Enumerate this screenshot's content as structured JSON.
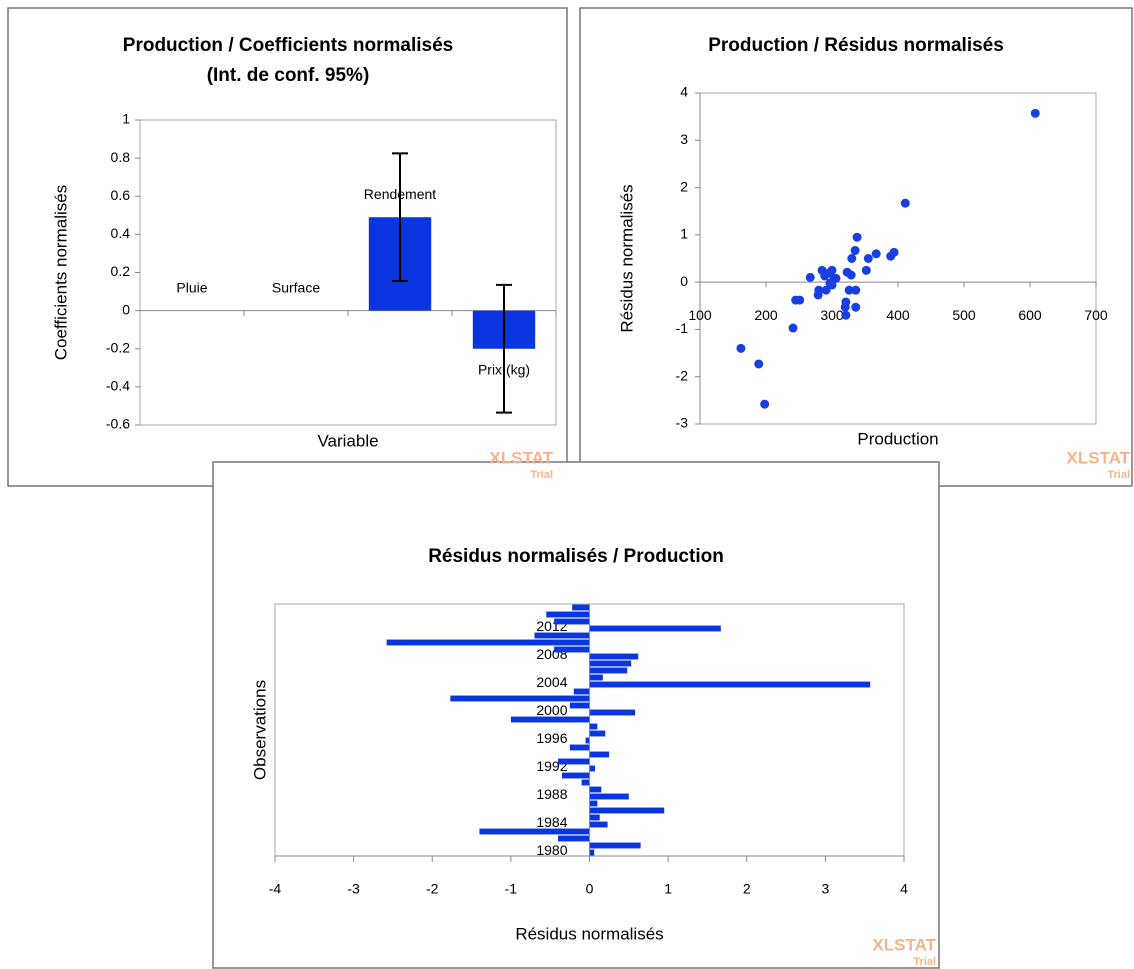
{
  "chart_data": [
    {
      "type": "bar",
      "title": "Production / Coefficients normalisés",
      "subtitle": "(Int. de conf. 95%)",
      "x_label": "Variable",
      "y_label": "Coefficients normalisés",
      "categories": [
        "Pluie",
        "Surface",
        "Rendement",
        "Prix (kg)"
      ],
      "values": [
        0,
        0,
        0.49,
        -0.2
      ],
      "errors": [
        null,
        null,
        0.335,
        0.335
      ],
      "color": "#0a35e0",
      "ylim": [
        -0.6,
        1
      ],
      "yticks": [
        -0.6,
        -0.4,
        -0.2,
        0,
        0.2,
        0.4,
        0.6,
        0.8,
        1
      ],
      "grid": false,
      "watermark": "XLSTAT",
      "watermark_note": "Trial"
    },
    {
      "type": "scatter",
      "title": "Production / Résidus normalisés",
      "x_label": "Production",
      "y_label": "Résidus normalisés",
      "x": [
        162,
        189,
        198,
        241,
        245,
        251,
        267,
        279,
        280,
        285,
        289,
        291,
        295,
        297,
        300,
        300,
        303,
        306,
        321,
        320,
        321,
        323,
        326,
        329,
        330,
        335,
        336,
        336,
        338,
        352,
        355,
        367,
        389,
        394,
        411,
        608
      ],
      "values": [
        -1.4,
        -1.73,
        -2.58,
        -0.97,
        -0.38,
        -0.38,
        0.1,
        -0.27,
        -0.17,
        0.25,
        0.13,
        -0.17,
        0.19,
        -0.02,
        0.25,
        -0.06,
        0.08,
        0.08,
        -0.42,
        -0.53,
        -0.7,
        0.21,
        -0.17,
        0.15,
        0.5,
        0.67,
        -0.17,
        -0.53,
        0.95,
        0.25,
        0.5,
        0.6,
        0.55,
        0.63,
        1.67,
        3.57
      ],
      "color": "#1a3fe0",
      "xlim": [
        100,
        700
      ],
      "xticks": [
        100,
        200,
        300,
        400,
        500,
        600,
        700
      ],
      "ylim": [
        -3,
        4
      ],
      "yticks": [
        -3,
        -2,
        -1,
        0,
        1,
        2,
        3,
        4
      ],
      "grid": false,
      "watermark": "XLSTAT",
      "watermark_note": "Trial"
    },
    {
      "type": "hbar",
      "title": "Résidus normalisés / Production",
      "x_label": "Résidus normalisés",
      "y_label": "Observations",
      "categories": [
        "1980",
        null,
        null,
        null,
        "1984",
        null,
        null,
        null,
        "1988",
        null,
        null,
        null,
        "1992",
        null,
        null,
        null,
        "1996",
        null,
        null,
        null,
        "2000",
        null,
        null,
        null,
        "2004",
        null,
        null,
        null,
        "2008",
        null,
        null,
        null,
        "2012",
        null,
        null,
        null
      ],
      "values": [
        0.06,
        0.65,
        -0.4,
        -1.4,
        0.23,
        0.13,
        0.95,
        0.1,
        0.5,
        0.15,
        -0.1,
        -0.35,
        0.07,
        -0.4,
        0.25,
        -0.25,
        -0.05,
        0.2,
        0.1,
        -1.0,
        0.58,
        -0.25,
        -1.77,
        -0.2,
        3.57,
        0.17,
        0.48,
        0.53,
        0.62,
        -0.45,
        -2.58,
        -0.7,
        1.67,
        -0.45,
        -0.55,
        -0.22
      ],
      "color": "#0a35e0",
      "xlim": [
        -4,
        4
      ],
      "xticks": [
        -4,
        -3,
        -2,
        -1,
        0,
        1,
        2,
        3,
        4
      ],
      "grid": false,
      "watermark": "XLSTAT",
      "watermark_note": "Trial"
    }
  ]
}
